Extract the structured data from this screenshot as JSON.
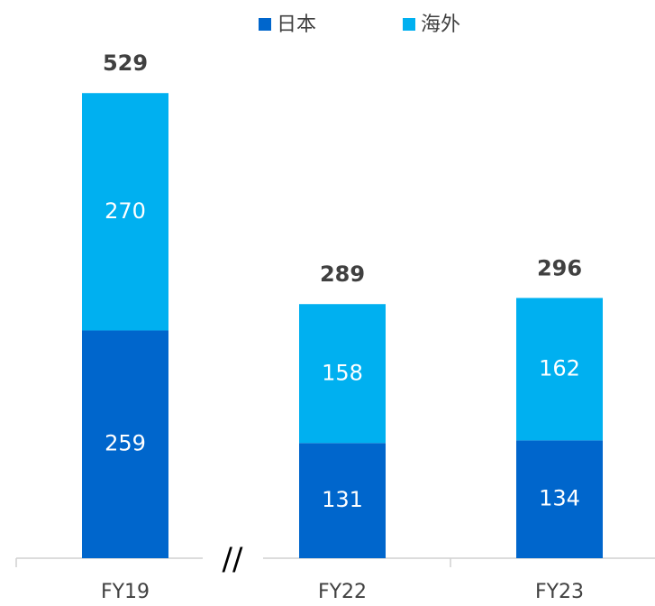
{
  "chart_data": {
    "type": "stacked_bar",
    "categories": [
      "FY19",
      "FY22",
      "FY23"
    ],
    "series": [
      {
        "name": "日本",
        "color": "#0066cc",
        "values": [
          259,
          131,
          134
        ]
      },
      {
        "name": "海外",
        "color": "#00b0f0",
        "values": [
          270,
          158,
          162
        ]
      }
    ],
    "totals": [
      529,
      289,
      296
    ],
    "axis_break": "//",
    "ylim": [
      0,
      600
    ],
    "legend": "top"
  }
}
